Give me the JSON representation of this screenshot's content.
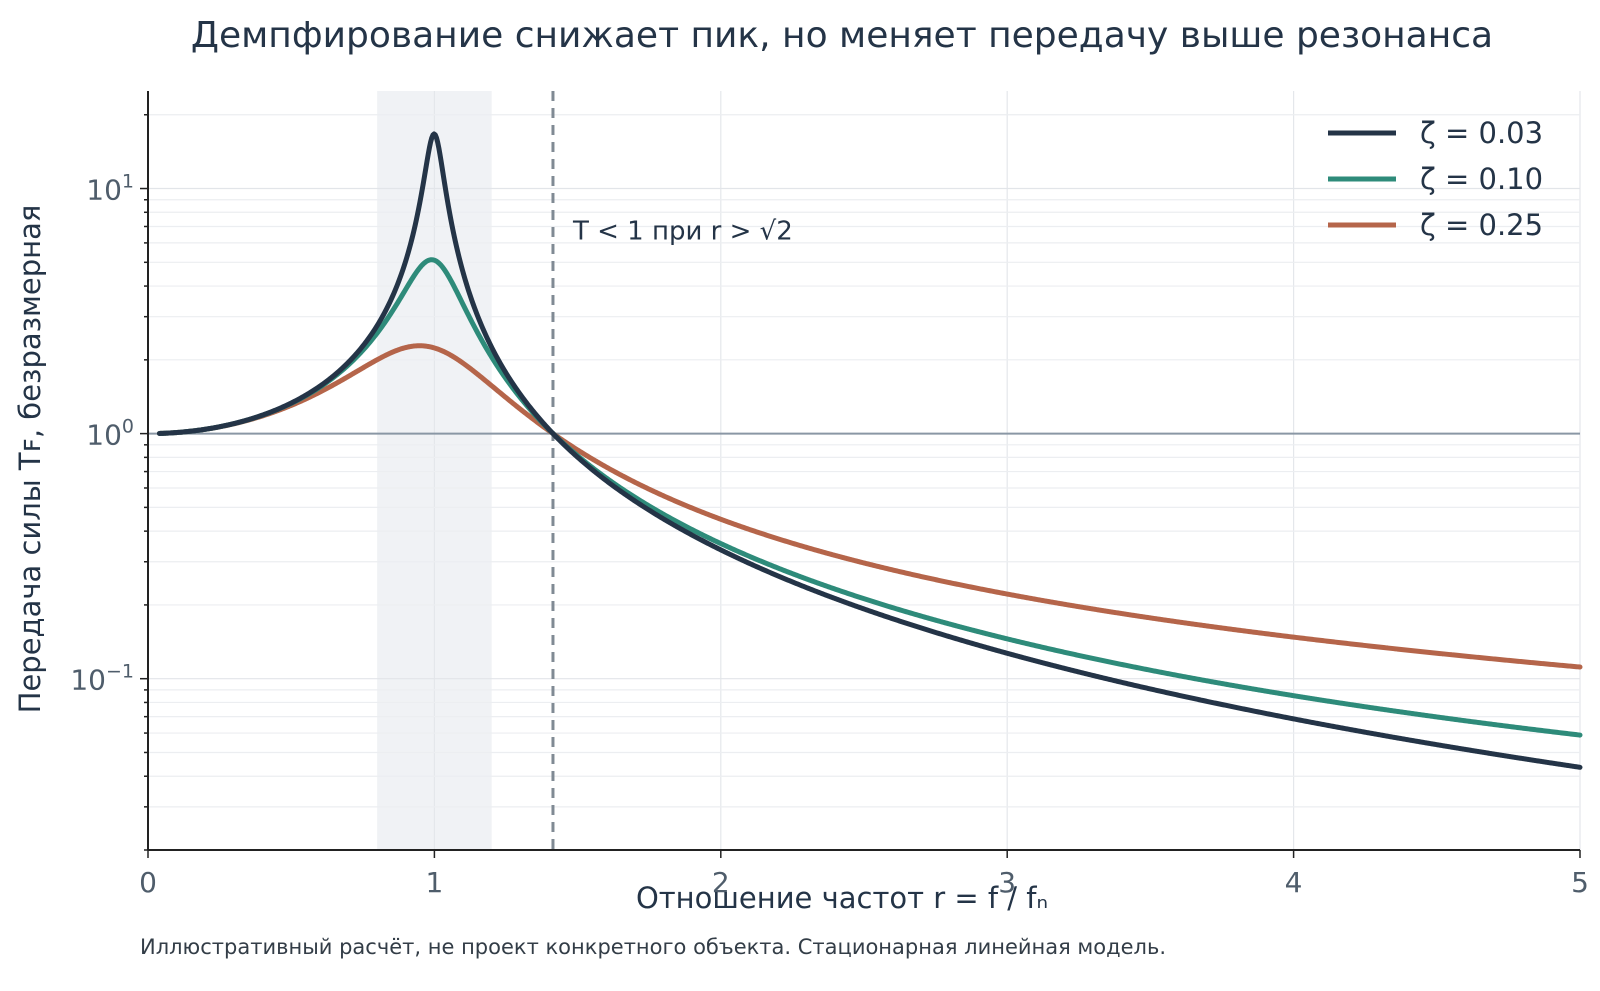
{
  "chart_data": {
    "type": "line",
    "title": "Демпфирование снижает пик, но меняет передачу выше резонанса",
    "xlabel": "Отношение частот r = f / fₙ",
    "ylabel": "Передача силы Tꜰ, безразмерная",
    "x_scale": "linear",
    "y_scale": "log",
    "xlim": [
      0,
      5
    ],
    "ylim": [
      0.02,
      25
    ],
    "x_ticks": [
      "0",
      "1",
      "2",
      "3",
      "4",
      "5"
    ],
    "x_tick_values": [
      0,
      1,
      2,
      3,
      4,
      5
    ],
    "y_ticks": [
      {
        "value": 10,
        "base": "10",
        "exp": "1"
      },
      {
        "value": 1,
        "base": "10",
        "exp": "0"
      },
      {
        "value": 0.1,
        "base": "10",
        "exp": "−1"
      }
    ],
    "grid": true,
    "legend_position": "top-right",
    "resonance_band": [
      0.8,
      1.2
    ],
    "sqrt2_line_x": 1.414,
    "reference_line_y": 1,
    "annotation": "T < 1 при r > √2",
    "series": [
      {
        "name": "ζ = 0.03",
        "zeta": 0.03,
        "color": "#243447",
        "x": [
          0.04,
          0.25,
          0.5,
          0.75,
          0.9,
          0.95,
          1.0,
          1.05,
          1.1,
          1.25,
          1.414,
          2,
          3,
          4,
          5
        ],
        "y": [
          1.0,
          1.067,
          1.333,
          2.283,
          5.11,
          9.38,
          16.7,
          9.83,
          4.74,
          1.77,
          1.0,
          0.335,
          0.126,
          0.068,
          0.043
        ]
      },
      {
        "name": "ζ = 0.10",
        "zeta": 0.1,
        "color": "#2e8b7a",
        "x": [
          0.04,
          0.25,
          0.5,
          0.75,
          0.9,
          0.95,
          1.0,
          1.05,
          1.1,
          1.25,
          1.414,
          2,
          3,
          4,
          5
        ],
        "y": [
          1.0,
          1.067,
          1.33,
          2.24,
          4.01,
          4.84,
          5.1,
          4.47,
          3.42,
          1.71,
          1.0,
          0.36,
          0.146,
          0.085,
          0.059
        ]
      },
      {
        "name": "ζ = 0.25",
        "zeta": 0.25,
        "color": "#b5654a",
        "x": [
          0.04,
          0.25,
          0.5,
          0.75,
          0.9,
          0.95,
          1.0,
          1.05,
          1.1,
          1.25,
          1.414,
          2,
          3,
          4,
          5
        ],
        "y": [
          1.0,
          1.066,
          1.3,
          1.91,
          2.25,
          2.29,
          2.24,
          2.11,
          1.93,
          1.51,
          1.0,
          0.46,
          0.22,
          0.149,
          0.112
        ]
      }
    ],
    "footnote": "Иллюстративный расчёт, не проект конкретного объекта. Стационарная линейная модель."
  }
}
